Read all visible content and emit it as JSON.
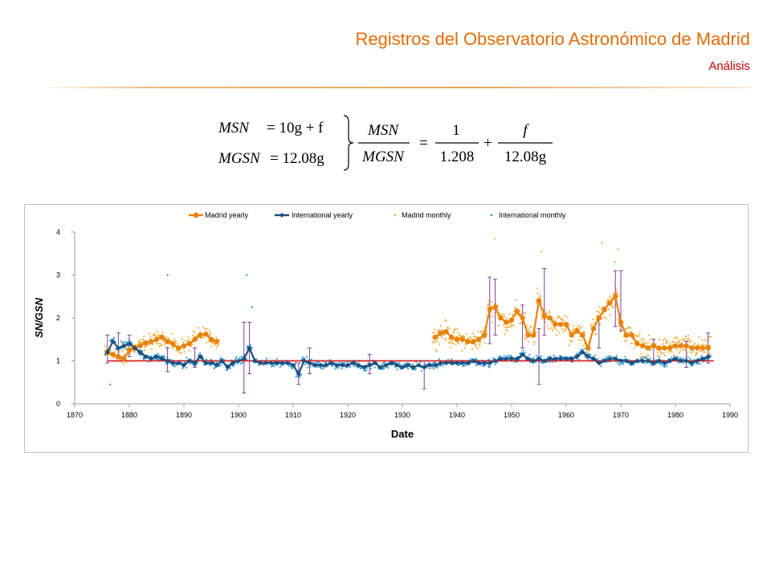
{
  "slide": {
    "title": "Registros del Observatorio Astronómico de Madrid",
    "subtitle": "Análisis"
  },
  "formula": {
    "line1_lhs": "MSN",
    "line1_rhs": "= 10g + f",
    "line2_lhs": "MGSN",
    "line2_rhs": "= 12.08g",
    "ratio_num": "MSN",
    "ratio_den": "MGSN",
    "equals": "=",
    "term1_num": "1",
    "term1_den": "1.208",
    "plus": "+",
    "term2_num": "f",
    "term2_den": "12.08g"
  },
  "colors": {
    "madrid": "#E8820C",
    "madrid_monthly": "#F6B040",
    "international": "#1F4E79",
    "international_monthly": "#2E9BD6",
    "errbar": "#7F3F98",
    "reference": "#E02020",
    "title": "#E46C0A",
    "subtitle": "#C00000"
  },
  "chart_data": {
    "type": "line",
    "xlabel": "Date",
    "ylabel": "SN/GSN",
    "xlim": [
      1870,
      1990
    ],
    "ylim": [
      0,
      4
    ],
    "xticks": [
      "1870",
      "1880",
      "1890",
      "1900",
      "1910",
      "1920",
      "1930",
      "1940",
      "1950",
      "1960",
      "1970",
      "1980",
      "1990"
    ],
    "yticks": [
      "0",
      "1",
      "2",
      "3",
      "4"
    ],
    "legend": [
      "Madrid yearly",
      "International yearly",
      "Madrid monthly",
      "International monthly"
    ],
    "legend_position": "top",
    "grid": false,
    "reference_line": {
      "y": 1.0,
      "x": [
        1876,
        1987
      ]
    },
    "series": [
      {
        "name": "Madrid yearly",
        "x": [
          1876,
          1877,
          1878,
          1879,
          1880,
          1881,
          1882,
          1883,
          1884,
          1885,
          1886,
          1887,
          1888,
          1889,
          1890,
          1891,
          1892,
          1893,
          1894,
          1895,
          1896,
          1936,
          1937,
          1938,
          1939,
          1940,
          1941,
          1942,
          1943,
          1944,
          1945,
          1946,
          1947,
          1948,
          1949,
          1950,
          1951,
          1952,
          1953,
          1954,
          1955,
          1956,
          1957,
          1958,
          1959,
          1960,
          1961,
          1962,
          1963,
          1964,
          1965,
          1966,
          1967,
          1968,
          1969,
          1970,
          1971,
          1972,
          1973,
          1974,
          1975,
          1976,
          1977,
          1978,
          1979,
          1980,
          1981,
          1982,
          1983,
          1984,
          1985,
          1986
        ],
        "y": [
          1.2,
          1.15,
          1.1,
          1.05,
          1.25,
          1.3,
          1.35,
          1.42,
          1.45,
          1.5,
          1.55,
          1.45,
          1.4,
          1.3,
          1.35,
          1.4,
          1.5,
          1.6,
          1.62,
          1.5,
          1.45,
          1.55,
          1.65,
          1.68,
          1.55,
          1.5,
          1.5,
          1.45,
          1.45,
          1.5,
          1.6,
          2.2,
          2.25,
          2.0,
          1.9,
          1.95,
          2.15,
          2.0,
          1.6,
          1.6,
          2.4,
          2.05,
          2.0,
          1.85,
          1.85,
          1.85,
          1.6,
          1.7,
          1.6,
          1.3,
          1.75,
          2.0,
          2.2,
          2.35,
          2.5,
          1.9,
          1.6,
          1.6,
          1.4,
          1.35,
          1.3,
          1.35,
          1.3,
          1.3,
          1.3,
          1.35,
          1.35,
          1.35,
          1.3,
          1.3,
          1.3,
          1.3
        ]
      },
      {
        "name": "International yearly",
        "x": [
          1876,
          1877,
          1878,
          1879,
          1880,
          1881,
          1882,
          1883,
          1884,
          1885,
          1886,
          1887,
          1888,
          1889,
          1890,
          1891,
          1892,
          1893,
          1894,
          1895,
          1896,
          1897,
          1898,
          1899,
          1900,
          1901,
          1902,
          1903,
          1904,
          1905,
          1906,
          1907,
          1908,
          1909,
          1910,
          1911,
          1912,
          1913,
          1914,
          1915,
          1916,
          1917,
          1918,
          1919,
          1920,
          1921,
          1922,
          1923,
          1924,
          1925,
          1926,
          1927,
          1928,
          1929,
          1930,
          1931,
          1932,
          1933,
          1934,
          1935,
          1936,
          1937,
          1938,
          1939,
          1940,
          1941,
          1942,
          1943,
          1944,
          1945,
          1946,
          1947,
          1948,
          1949,
          1950,
          1951,
          1952,
          1953,
          1954,
          1955,
          1956,
          1957,
          1958,
          1959,
          1960,
          1961,
          1962,
          1963,
          1964,
          1965,
          1966,
          1967,
          1968,
          1969,
          1970,
          1971,
          1972,
          1973,
          1974,
          1975,
          1976,
          1977,
          1978,
          1979,
          1980,
          1981,
          1982,
          1983,
          1984,
          1985,
          1986
        ],
        "y": [
          1.2,
          1.45,
          1.3,
          1.35,
          1.4,
          1.3,
          1.2,
          1.1,
          1.05,
          1.1,
          1.05,
          1.0,
          0.95,
          0.95,
          0.9,
          1.0,
          0.95,
          1.1,
          0.95,
          0.95,
          0.9,
          1.0,
          0.85,
          0.95,
          1.0,
          1.05,
          1.3,
          1.0,
          0.95,
          0.95,
          0.95,
          0.95,
          0.95,
          0.95,
          0.9,
          0.7,
          1.0,
          0.95,
          0.9,
          0.9,
          0.9,
          0.95,
          0.9,
          0.9,
          0.9,
          0.95,
          0.9,
          0.85,
          0.9,
          0.95,
          0.85,
          0.9,
          0.95,
          0.9,
          0.85,
          0.9,
          0.85,
          0.9,
          0.85,
          0.9,
          0.9,
          0.95,
          0.95,
          0.95,
          0.95,
          0.95,
          0.95,
          1.0,
          0.95,
          0.95,
          0.95,
          1.0,
          1.05,
          1.05,
          1.05,
          1.05,
          1.15,
          1.05,
          1.0,
          1.05,
          1.0,
          1.05,
          1.05,
          1.05,
          1.05,
          1.05,
          1.1,
          1.2,
          1.1,
          1.05,
          0.95,
          1.0,
          1.05,
          1.05,
          1.0,
          1.0,
          0.95,
          1.0,
          1.0,
          1.0,
          0.95,
          1.0,
          0.95,
          1.0,
          1.05,
          1.0,
          1.0,
          0.95,
          1.0,
          1.05,
          1.1
        ]
      }
    ],
    "monthly_scatter": [
      {
        "name": "Madrid monthly",
        "range": [
          1876,
          1896
        ],
        "center": "Madrid yearly",
        "spread": 0.25,
        "points_per_year": 12
      },
      {
        "name": "Madrid monthly",
        "range": [
          1936,
          1986
        ],
        "center": "Madrid yearly",
        "spread": 0.35,
        "points_per_year": 12
      },
      {
        "name": "International monthly",
        "range": [
          1876,
          1986
        ],
        "center": "International yearly",
        "spread": 0.12,
        "points_per_year": 12
      }
    ],
    "monthly_outliers": [
      {
        "name": "International monthly",
        "x": 1887,
        "y": 3.0
      },
      {
        "name": "International monthly",
        "x": 1901.5,
        "y": 3.0
      },
      {
        "name": "International monthly",
        "x": 1902.5,
        "y": 2.25
      },
      {
        "name": "Madrid monthly",
        "x": 1947,
        "y": 3.85
      },
      {
        "name": "Madrid monthly",
        "x": 1955.5,
        "y": 3.55
      },
      {
        "name": "Madrid monthly",
        "x": 1966.5,
        "y": 3.75
      },
      {
        "name": "Madrid monthly",
        "x": 1969.5,
        "y": 3.6
      },
      {
        "name": "Madrid monthly",
        "x": 1969,
        "y": 3.3
      },
      {
        "name": "International monthly",
        "x": 1876.5,
        "y": 0.45
      }
    ],
    "error_bars": [
      {
        "x": 1876,
        "low": 0.95,
        "high": 1.6
      },
      {
        "x": 1878,
        "low": 1.05,
        "high": 1.65
      },
      {
        "x": 1880,
        "low": 1.1,
        "high": 1.6
      },
      {
        "x": 1887,
        "low": 0.75,
        "high": 1.3
      },
      {
        "x": 1892,
        "low": 0.85,
        "high": 1.3
      },
      {
        "x": 1901,
        "low": 0.25,
        "high": 1.9
      },
      {
        "x": 1902,
        "low": 0.7,
        "high": 1.9
      },
      {
        "x": 1911,
        "low": 0.45,
        "high": 0.95
      },
      {
        "x": 1913,
        "low": 0.7,
        "high": 1.3
      },
      {
        "x": 1924,
        "low": 0.7,
        "high": 1.15
      },
      {
        "x": 1934,
        "low": 0.35,
        "high": 1.0
      },
      {
        "x": 1946,
        "low": 1.4,
        "high": 2.95
      },
      {
        "x": 1947,
        "low": 1.6,
        "high": 2.9
      },
      {
        "x": 1952,
        "low": 1.3,
        "high": 2.3
      },
      {
        "x": 1955,
        "low": 0.45,
        "high": 1.75
      },
      {
        "x": 1956,
        "low": 1.6,
        "high": 3.15
      },
      {
        "x": 1966,
        "low": 1.3,
        "high": 2.0
      },
      {
        "x": 1969,
        "low": 1.8,
        "high": 3.1
      },
      {
        "x": 1970,
        "low": 1.7,
        "high": 3.1
      },
      {
        "x": 1976,
        "low": 0.9,
        "high": 1.5
      },
      {
        "x": 1982,
        "low": 0.85,
        "high": 1.45
      },
      {
        "x": 1986,
        "low": 0.95,
        "high": 1.65
      }
    ]
  }
}
